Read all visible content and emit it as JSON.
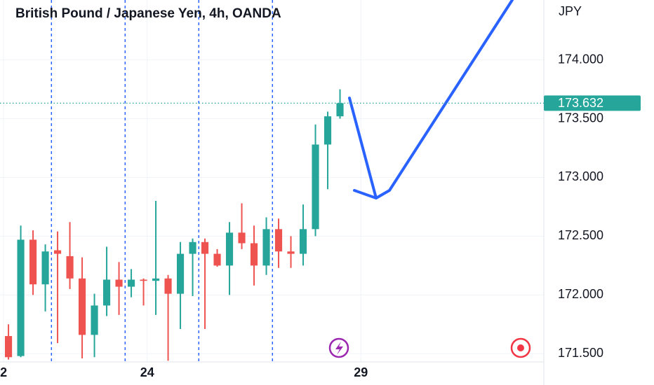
{
  "chart_data": {
    "type": "candlestick",
    "title": "British Pound / Japanese Yen, 4h, OANDA",
    "unit": "JPY",
    "x": [
      0,
      1,
      2,
      3,
      4,
      5,
      6,
      7,
      8,
      9,
      10,
      11,
      12,
      13,
      14,
      15,
      16,
      17,
      18,
      19,
      20,
      21,
      22,
      23,
      24,
      25,
      26,
      27
    ],
    "open": [
      171.65,
      171.48,
      172.47,
      172.09,
      172.38,
      172.33,
      172.14,
      171.66,
      171.91,
      172.13,
      172.07,
      172.13,
      172.12,
      172.14,
      172.01,
      172.35,
      172.45,
      172.35,
      172.25,
      172.53,
      172.44,
      172.25,
      172.56,
      172.37,
      172.35,
      172.56,
      173.28,
      173.52
    ],
    "high": [
      171.75,
      172.59,
      172.55,
      172.43,
      172.54,
      172.62,
      172.32,
      172.01,
      172.41,
      172.28,
      172.22,
      172.14,
      172.8,
      172.17,
      172.45,
      172.48,
      172.48,
      172.39,
      172.62,
      172.78,
      172.59,
      172.66,
      172.65,
      172.5,
      172.77,
      173.45,
      173.56,
      173.75
    ],
    "low": [
      171.45,
      171.47,
      172.0,
      171.86,
      171.59,
      172.05,
      171.46,
      171.47,
      171.82,
      171.83,
      171.98,
      171.91,
      171.83,
      171.44,
      171.71,
      171.99,
      171.71,
      172.24,
      172.0,
      172.39,
      172.08,
      172.17,
      172.23,
      172.23,
      172.25,
      172.5,
      172.9,
      173.5
    ],
    "close": [
      171.47,
      172.47,
      172.09,
      172.37,
      172.35,
      172.14,
      171.66,
      171.91,
      172.13,
      172.07,
      172.13,
      172.12,
      172.14,
      172.01,
      172.35,
      172.45,
      172.35,
      172.25,
      172.53,
      172.44,
      172.25,
      172.56,
      172.37,
      172.35,
      172.56,
      173.28,
      173.52,
      173.632
    ],
    "up_color": "#26a69a",
    "down_color": "#ef5350",
    "last_price": 173.632,
    "vlines": [
      3.5,
      9.5,
      15.5,
      21.5
    ],
    "xlim": [
      -0.69,
      43.6
    ],
    "xticks": [
      {
        "value": -0.4,
        "label": "2"
      },
      {
        "value": 11.3,
        "label": "24"
      },
      {
        "value": 28.7,
        "label": "29"
      }
    ],
    "ylim": [
      171.43,
      174.51
    ],
    "yticks": [
      {
        "value": 171.5,
        "label": "171.500"
      },
      {
        "value": 172,
        "label": "172.000"
      },
      {
        "value": 172.5,
        "label": "172.500"
      },
      {
        "value": 173,
        "label": "173.000"
      },
      {
        "value": 173.5,
        "label": "173.500"
      },
      {
        "value": 174,
        "label": "174.000"
      }
    ],
    "grid": true
  }
}
